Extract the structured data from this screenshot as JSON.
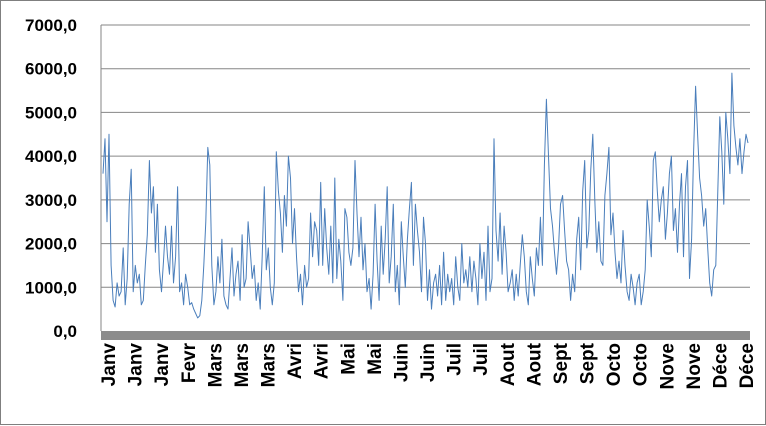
{
  "chart_data": {
    "type": "line",
    "title": "",
    "xlabel": "",
    "ylabel": "",
    "ylim": [
      0,
      7000
    ],
    "grid": true,
    "legend": "none",
    "line_color": "#4a7ebb",
    "grid_color": "#868686",
    "floor_color": "#8c8c8c",
    "y_ticks": [
      "0,0",
      "1000,0",
      "2000,0",
      "3000,0",
      "4000,0",
      "5000,0",
      "6000,0",
      "7000,0"
    ],
    "y_tick_values": [
      0,
      1000,
      2000,
      3000,
      4000,
      5000,
      6000,
      7000
    ],
    "x_tick_labels": [
      "Janv",
      "Janv",
      "Janv",
      "Fevr",
      "Mars",
      "Mars",
      "Mars",
      "Avri",
      "Avri",
      "Mai",
      "Mai",
      "Juin",
      "Juin",
      "Juil",
      "Juil",
      "Aout",
      "Aout",
      "Sept",
      "Sept",
      "Octo",
      "Octo",
      "Nove",
      "Nove",
      "Déce",
      "Déce"
    ],
    "series": [
      {
        "values": [
          3600,
          4400,
          2500,
          4500,
          1500,
          700,
          550,
          1100,
          800,
          900,
          1900,
          600,
          1200,
          2900,
          3700,
          900,
          1500,
          1100,
          1300,
          600,
          700,
          1500,
          2200,
          3900,
          2700,
          3300,
          1800,
          2900,
          1400,
          900,
          1600,
          2400,
          1700,
          1300,
          2400,
          1100,
          1700,
          3300,
          900,
          1100,
          600,
          1300,
          1000,
          600,
          650,
          500,
          400,
          300,
          350,
          700,
          1500,
          2500,
          4200,
          3800,
          1500,
          600,
          900,
          1700,
          1100,
          2100,
          800,
          600,
          500,
          1200,
          1900,
          800,
          1300,
          1600,
          700,
          2200,
          1000,
          1200,
          2500,
          1900,
          1200,
          1500,
          700,
          1100,
          500,
          1700,
          3300,
          1400,
          1900,
          1000,
          600,
          1100,
          4100,
          3200,
          2700,
          1800,
          3100,
          2400,
          4000,
          3500,
          2000,
          2800,
          1700,
          900,
          1300,
          600,
          1500,
          1000,
          1200,
          2700,
          1700,
          2500,
          2300,
          1500,
          3400,
          1500,
          2800,
          1900,
          1300,
          2400,
          1100,
          3500,
          1200,
          2100,
          1600,
          700,
          2800,
          2600,
          1800,
          1500,
          1900,
          3900,
          2700,
          1700,
          2600,
          1400,
          2000,
          900,
          1200,
          500,
          1300,
          2900,
          1600,
          700,
          2400,
          1300,
          2100,
          3300,
          1100,
          1700,
          2900,
          900,
          1500,
          600,
          2500,
          1700,
          1000,
          2100,
          2800,
          3400,
          1500,
          2900,
          2300,
          1800,
          900,
          2600,
          2000,
          700,
          1400,
          500,
          1100,
          1300,
          800,
          1500,
          600,
          1800,
          700,
          1300,
          900,
          1200,
          600,
          1700,
          1000,
          700,
          2000,
          1100,
          1400,
          1000,
          1700,
          900,
          1600,
          1200,
          600,
          2000,
          1200,
          1800,
          700,
          2400,
          900,
          1200,
          4400,
          2300,
          1600,
          2700,
          1300,
          2400,
          1800,
          900,
          1100,
          1400,
          700,
          1300,
          800,
          1500,
          2200,
          1700,
          900,
          600,
          1700,
          1200,
          800,
          1900,
          1500,
          2600,
          1500,
          3800,
          5300,
          4000,
          2800,
          2400,
          1800,
          1300,
          1900,
          2900,
          3100,
          2300,
          1600,
          1400,
          700,
          1300,
          900,
          2100,
          2600,
          1400,
          3200,
          3900,
          1900,
          2300,
          3700,
          4500,
          3000,
          1800,
          2500,
          1600,
          1500,
          3100,
          3600,
          4200,
          2200,
          2700,
          1800,
          1200,
          1600,
          1100,
          2300,
          1500,
          900,
          700,
          1300,
          1000,
          600,
          1100,
          1300,
          600,
          900,
          1400,
          3000,
          2400,
          1700,
          3900,
          4100,
          3200,
          2500,
          3000,
          3300,
          2100,
          2700,
          3600,
          4000,
          2300,
          2800,
          1800,
          2900,
          3600,
          1700,
          3300,
          3900,
          1200,
          2100,
          4100,
          5600,
          4500,
          3500,
          3100,
          2400,
          2800,
          1900,
          1100,
          800,
          1400,
          1500,
          3200,
          4900,
          4100,
          2900,
          5000,
          4400,
          3600,
          5900,
          4700,
          4200,
          3800,
          4400,
          3600,
          4100,
          4500,
          4300
        ]
      }
    ]
  }
}
